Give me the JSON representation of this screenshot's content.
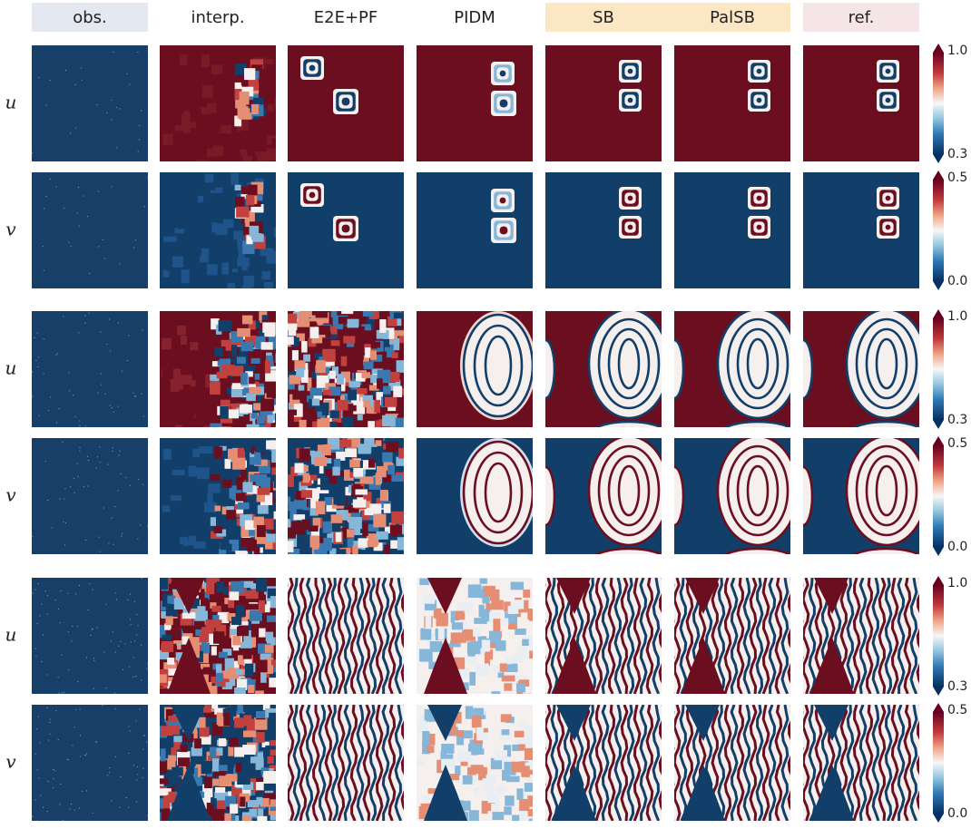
{
  "columns": [
    "obs.",
    "interp.",
    "E2E+PF",
    "PIDM",
    "SB",
    "PalSB",
    "ref."
  ],
  "rows": [
    {
      "label": "u",
      "colorbar": {
        "max": "1.0",
        "min": "0.3"
      }
    },
    {
      "label": "v",
      "colorbar": {
        "max": "0.5",
        "min": "0.0"
      }
    },
    {
      "label": "u",
      "colorbar": {
        "max": "1.0",
        "min": "0.3"
      }
    },
    {
      "label": "v",
      "colorbar": {
        "max": "0.5",
        "min": "0.0"
      }
    },
    {
      "label": "u",
      "colorbar": {
        "max": "1.0",
        "min": "0.3"
      }
    },
    {
      "label": "v",
      "colorbar": {
        "max": "0.5",
        "min": "0.0"
      }
    }
  ]
}
